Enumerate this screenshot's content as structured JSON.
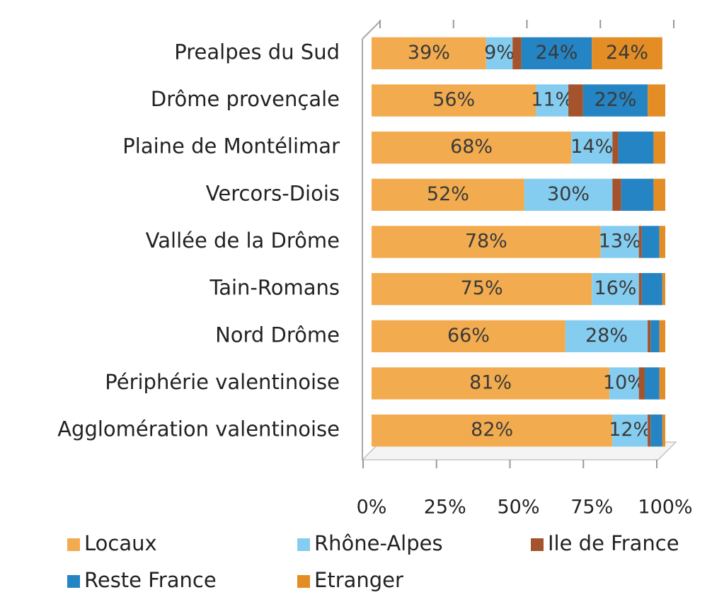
{
  "chart_data": {
    "type": "stacked_bar_horizontal",
    "categories": [
      "Prealpes du Sud",
      "Drôme provençale",
      "Plaine de Montélimar",
      "Vercors-Diois",
      "Vallée de la Drôme",
      "Tain-Romans",
      "Nord Drôme",
      "Périphérie valentinoise",
      "Agglomération valentinoise"
    ],
    "series": [
      {
        "name": "Locaux",
        "color": "#f2ab4e",
        "values": [
          39,
          56,
          68,
          52,
          78,
          75,
          66,
          81,
          82
        ],
        "value_labels": [
          "39%",
          "56%",
          "68%",
          "52%",
          "78%",
          "75%",
          "66%",
          "81%",
          "82%"
        ]
      },
      {
        "name": "Rhône-Alpes",
        "color": "#84cdf0",
        "values": [
          9,
          11,
          14,
          30,
          13,
          16,
          28,
          10,
          12
        ],
        "value_labels": [
          "9%",
          "11%",
          "14%",
          "30%",
          "13%",
          "16%",
          "28%",
          "10%",
          "12%"
        ]
      },
      {
        "name": "Ile de France",
        "color": "#a4532c",
        "values": [
          3,
          5,
          2,
          3,
          1,
          1,
          1,
          2,
          1
        ]
      },
      {
        "name": "Reste France",
        "color": "#2484c4",
        "values": [
          24,
          22,
          12,
          11,
          6,
          7,
          3,
          5,
          4
        ],
        "value_labels": [
          "24%",
          "22%",
          null,
          null,
          null,
          null,
          null,
          null,
          null
        ]
      },
      {
        "name": "Etranger",
        "color": "#e38d24",
        "values": [
          24,
          6,
          4,
          4,
          2,
          1,
          2,
          2,
          1
        ],
        "value_labels": [
          "24%",
          null,
          null,
          null,
          null,
          null,
          null,
          null,
          null
        ]
      }
    ],
    "xlim": [
      0,
      100
    ],
    "xticks": [
      {
        "value": 0,
        "label": "0%"
      },
      {
        "value": 25,
        "label": "25%"
      },
      {
        "value": 50,
        "label": "50%"
      },
      {
        "value": 75,
        "label": "75%"
      },
      {
        "value": 100,
        "label": "100%"
      }
    ],
    "legend": "bottom"
  }
}
